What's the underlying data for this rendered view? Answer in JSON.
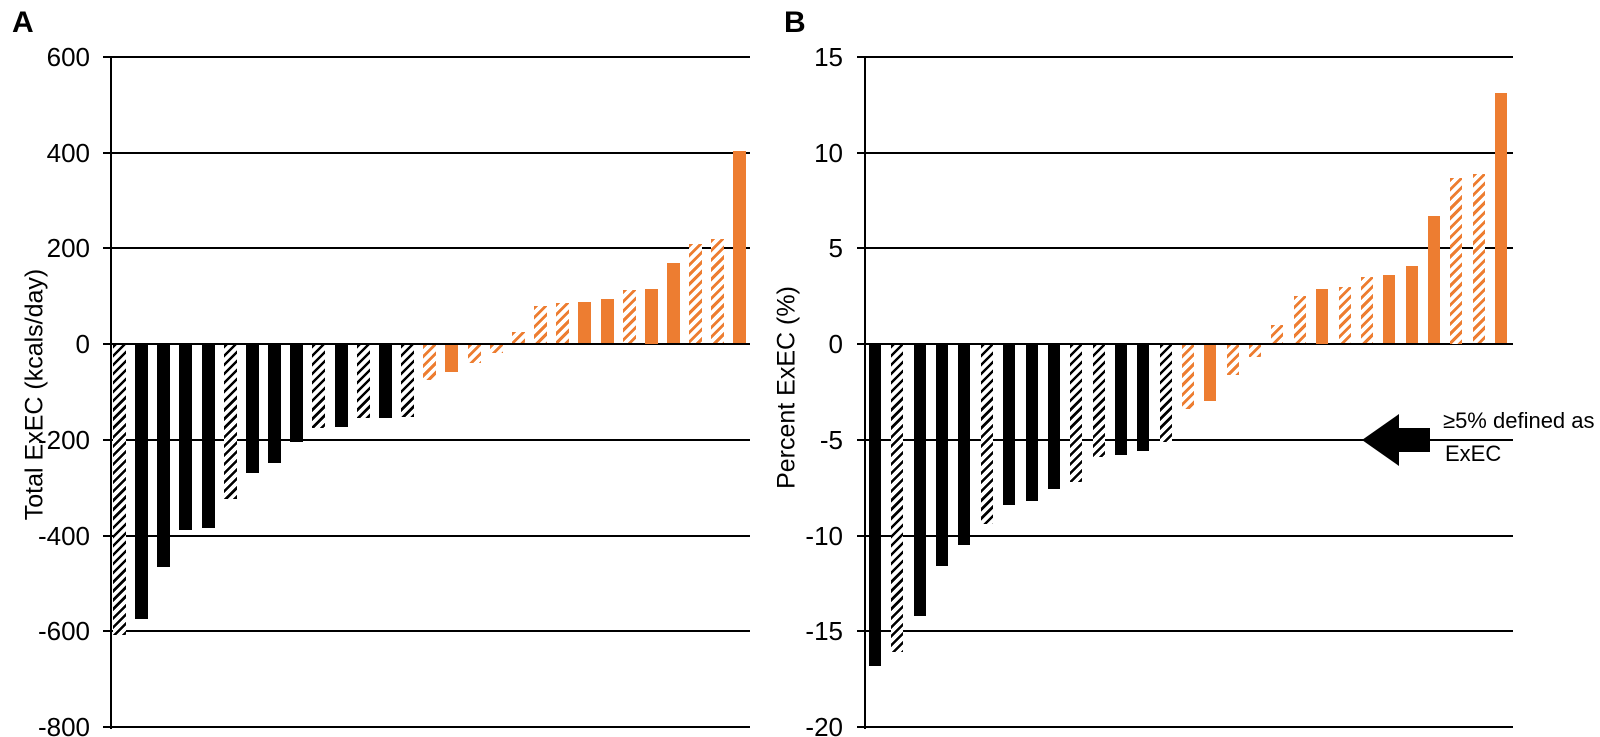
{
  "colors": {
    "black": "#000000",
    "orange": "#ED7D31",
    "background": "#FFFFFF",
    "gridline": "#000000"
  },
  "chart_data": [
    {
      "panel": "A",
      "type": "bar",
      "title": "",
      "xlabel": "",
      "ylabel": "Total ExEC (kcals/day)",
      "ylim": [
        -800,
        600
      ],
      "yticks": [
        600,
        400,
        200,
        0,
        -200,
        -400,
        -600,
        -800
      ],
      "grid": true,
      "legend_position": "none",
      "bars": [
        {
          "value": -608,
          "color": "black",
          "fill": "hatched"
        },
        {
          "value": -575,
          "color": "black",
          "fill": "solid"
        },
        {
          "value": -466,
          "color": "black",
          "fill": "solid"
        },
        {
          "value": -389,
          "color": "black",
          "fill": "solid"
        },
        {
          "value": -385,
          "color": "black",
          "fill": "solid"
        },
        {
          "value": -324,
          "color": "black",
          "fill": "hatched"
        },
        {
          "value": -270,
          "color": "black",
          "fill": "solid"
        },
        {
          "value": -249,
          "color": "black",
          "fill": "solid"
        },
        {
          "value": -205,
          "color": "black",
          "fill": "solid"
        },
        {
          "value": -176,
          "color": "black",
          "fill": "hatched"
        },
        {
          "value": -173,
          "color": "black",
          "fill": "solid"
        },
        {
          "value": -155,
          "color": "black",
          "fill": "hatched"
        },
        {
          "value": -154,
          "color": "black",
          "fill": "solid"
        },
        {
          "value": -153,
          "color": "black",
          "fill": "hatched"
        },
        {
          "value": -75,
          "color": "orange",
          "fill": "hatched"
        },
        {
          "value": -59,
          "color": "orange",
          "fill": "solid"
        },
        {
          "value": -40,
          "color": "orange",
          "fill": "hatched"
        },
        {
          "value": -19,
          "color": "orange",
          "fill": "hatched"
        },
        {
          "value": 25,
          "color": "orange",
          "fill": "hatched"
        },
        {
          "value": 79,
          "color": "orange",
          "fill": "hatched"
        },
        {
          "value": 86,
          "color": "orange",
          "fill": "hatched"
        },
        {
          "value": 88,
          "color": "orange",
          "fill": "solid"
        },
        {
          "value": 94,
          "color": "orange",
          "fill": "solid"
        },
        {
          "value": 113,
          "color": "orange",
          "fill": "hatched"
        },
        {
          "value": 116,
          "color": "orange",
          "fill": "solid"
        },
        {
          "value": 169,
          "color": "orange",
          "fill": "solid"
        },
        {
          "value": 209,
          "color": "orange",
          "fill": "hatched"
        },
        {
          "value": 220,
          "color": "orange",
          "fill": "hatched"
        },
        {
          "value": 403,
          "color": "orange",
          "fill": "solid"
        }
      ]
    },
    {
      "panel": "B",
      "type": "bar",
      "title": "",
      "xlabel": "",
      "ylabel": "Percent ExEC (%)",
      "ylim": [
        -20,
        15
      ],
      "yticks": [
        15,
        10,
        5,
        0,
        -5,
        -10,
        -15,
        -20
      ],
      "grid": true,
      "legend_position": "none",
      "bars": [
        {
          "value": -16.8,
          "color": "black",
          "fill": "solid"
        },
        {
          "value": -16.1,
          "color": "black",
          "fill": "hatched"
        },
        {
          "value": -14.2,
          "color": "black",
          "fill": "solid"
        },
        {
          "value": -11.6,
          "color": "black",
          "fill": "solid"
        },
        {
          "value": -10.5,
          "color": "black",
          "fill": "solid"
        },
        {
          "value": -9.4,
          "color": "black",
          "fill": "hatched"
        },
        {
          "value": -8.4,
          "color": "black",
          "fill": "solid"
        },
        {
          "value": -8.2,
          "color": "black",
          "fill": "solid"
        },
        {
          "value": -7.6,
          "color": "black",
          "fill": "solid"
        },
        {
          "value": -7.2,
          "color": "black",
          "fill": "hatched"
        },
        {
          "value": -5.9,
          "color": "black",
          "fill": "hatched"
        },
        {
          "value": -5.8,
          "color": "black",
          "fill": "solid"
        },
        {
          "value": -5.6,
          "color": "black",
          "fill": "solid"
        },
        {
          "value": -5.1,
          "color": "black",
          "fill": "hatched"
        },
        {
          "value": -3.4,
          "color": "orange",
          "fill": "hatched"
        },
        {
          "value": -3.0,
          "color": "orange",
          "fill": "solid"
        },
        {
          "value": -1.6,
          "color": "orange",
          "fill": "hatched"
        },
        {
          "value": -0.7,
          "color": "orange",
          "fill": "hatched"
        },
        {
          "value": 1.0,
          "color": "orange",
          "fill": "hatched"
        },
        {
          "value": 2.5,
          "color": "orange",
          "fill": "hatched"
        },
        {
          "value": 2.9,
          "color": "orange",
          "fill": "solid"
        },
        {
          "value": 3.0,
          "color": "orange",
          "fill": "hatched"
        },
        {
          "value": 3.5,
          "color": "orange",
          "fill": "hatched"
        },
        {
          "value": 3.6,
          "color": "orange",
          "fill": "solid"
        },
        {
          "value": 4.1,
          "color": "orange",
          "fill": "solid"
        },
        {
          "value": 6.7,
          "color": "orange",
          "fill": "solid"
        },
        {
          "value": 8.7,
          "color": "orange",
          "fill": "hatched"
        },
        {
          "value": 8.9,
          "color": "orange",
          "fill": "hatched"
        },
        {
          "value": 13.1,
          "color": "orange",
          "fill": "solid"
        }
      ],
      "annotation": {
        "text_line1": "≥5% defined as",
        "text_line2": "ExEC",
        "arrow_direction": "left",
        "arrow_y": -5
      }
    }
  ]
}
